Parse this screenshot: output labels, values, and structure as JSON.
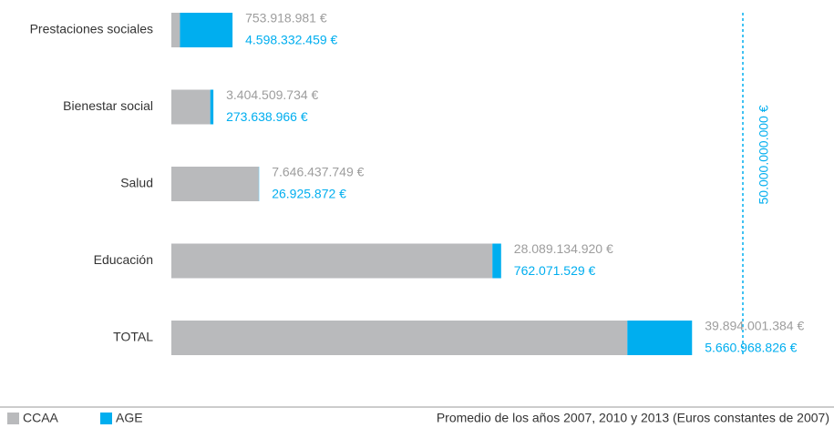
{
  "chart_data": {
    "type": "stacked_barh",
    "categories": [
      "Prestaciones sociales",
      "Bienestar social",
      "Salud",
      "Educación",
      "TOTAL"
    ],
    "series": [
      {
        "name": "CCAA",
        "color": "#b9babc",
        "values": [
          753918981,
          3404509734,
          7646437749,
          28089134920,
          39894001384
        ],
        "value_labels": [
          "753.918.981 €",
          "3.404.509.734 €",
          "7.646.437.749 €",
          "28.089.134.920 €",
          "39.894.001.384 €"
        ]
      },
      {
        "name": "AGE",
        "color": "#00aeef",
        "values": [
          4598332459,
          273638966,
          26925872,
          762071529,
          5660968826
        ],
        "value_labels": [
          "4.598.332.459 €",
          "273.638.966 €",
          "26.925.872 €",
          "762.071.529 €",
          "5.660.968.826 €"
        ]
      }
    ],
    "xlim": [
      0,
      50000000000
    ],
    "reference_line": {
      "value": 50000000000,
      "label": "50.000.000.000 €"
    },
    "note": "Promedio de los años 2007, 2010 y 2013 (Euros constantes de 2007)"
  }
}
